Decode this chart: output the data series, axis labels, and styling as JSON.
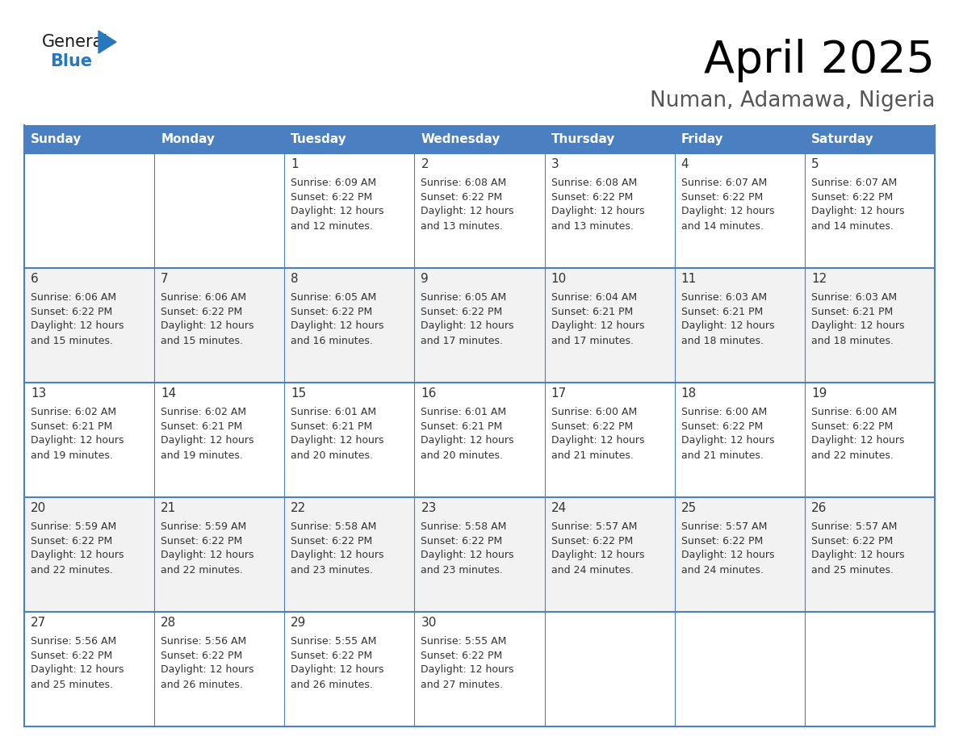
{
  "title": "April 2025",
  "subtitle": "Numan, Adamawa, Nigeria",
  "header_bg": "#4a7fc1",
  "header_text": "#FFFFFF",
  "row_bg_light": "#f2f2f2",
  "row_bg_white": "#ffffff",
  "border_color": "#4a7fc1",
  "text_color": "#333333",
  "day_number_color": "#333333",
  "days_of_week": [
    "Sunday",
    "Monday",
    "Tuesday",
    "Wednesday",
    "Thursday",
    "Friday",
    "Saturday"
  ],
  "weeks": [
    [
      {
        "day": "",
        "sunrise": "",
        "sunset": "",
        "daylight": ""
      },
      {
        "day": "",
        "sunrise": "",
        "sunset": "",
        "daylight": ""
      },
      {
        "day": "1",
        "sunrise": "6:09 AM",
        "sunset": "6:22 PM",
        "daylight": "12 hours\nand 12 minutes."
      },
      {
        "day": "2",
        "sunrise": "6:08 AM",
        "sunset": "6:22 PM",
        "daylight": "12 hours\nand 13 minutes."
      },
      {
        "day": "3",
        "sunrise": "6:08 AM",
        "sunset": "6:22 PM",
        "daylight": "12 hours\nand 13 minutes."
      },
      {
        "day": "4",
        "sunrise": "6:07 AM",
        "sunset": "6:22 PM",
        "daylight": "12 hours\nand 14 minutes."
      },
      {
        "day": "5",
        "sunrise": "6:07 AM",
        "sunset": "6:22 PM",
        "daylight": "12 hours\nand 14 minutes."
      }
    ],
    [
      {
        "day": "6",
        "sunrise": "6:06 AM",
        "sunset": "6:22 PM",
        "daylight": "12 hours\nand 15 minutes."
      },
      {
        "day": "7",
        "sunrise": "6:06 AM",
        "sunset": "6:22 PM",
        "daylight": "12 hours\nand 15 minutes."
      },
      {
        "day": "8",
        "sunrise": "6:05 AM",
        "sunset": "6:22 PM",
        "daylight": "12 hours\nand 16 minutes."
      },
      {
        "day": "9",
        "sunrise": "6:05 AM",
        "sunset": "6:22 PM",
        "daylight": "12 hours\nand 17 minutes."
      },
      {
        "day": "10",
        "sunrise": "6:04 AM",
        "sunset": "6:21 PM",
        "daylight": "12 hours\nand 17 minutes."
      },
      {
        "day": "11",
        "sunrise": "6:03 AM",
        "sunset": "6:21 PM",
        "daylight": "12 hours\nand 18 minutes."
      },
      {
        "day": "12",
        "sunrise": "6:03 AM",
        "sunset": "6:21 PM",
        "daylight": "12 hours\nand 18 minutes."
      }
    ],
    [
      {
        "day": "13",
        "sunrise": "6:02 AM",
        "sunset": "6:21 PM",
        "daylight": "12 hours\nand 19 minutes."
      },
      {
        "day": "14",
        "sunrise": "6:02 AM",
        "sunset": "6:21 PM",
        "daylight": "12 hours\nand 19 minutes."
      },
      {
        "day": "15",
        "sunrise": "6:01 AM",
        "sunset": "6:21 PM",
        "daylight": "12 hours\nand 20 minutes."
      },
      {
        "day": "16",
        "sunrise": "6:01 AM",
        "sunset": "6:21 PM",
        "daylight": "12 hours\nand 20 minutes."
      },
      {
        "day": "17",
        "sunrise": "6:00 AM",
        "sunset": "6:22 PM",
        "daylight": "12 hours\nand 21 minutes."
      },
      {
        "day": "18",
        "sunrise": "6:00 AM",
        "sunset": "6:22 PM",
        "daylight": "12 hours\nand 21 minutes."
      },
      {
        "day": "19",
        "sunrise": "6:00 AM",
        "sunset": "6:22 PM",
        "daylight": "12 hours\nand 22 minutes."
      }
    ],
    [
      {
        "day": "20",
        "sunrise": "5:59 AM",
        "sunset": "6:22 PM",
        "daylight": "12 hours\nand 22 minutes."
      },
      {
        "day": "21",
        "sunrise": "5:59 AM",
        "sunset": "6:22 PM",
        "daylight": "12 hours\nand 22 minutes."
      },
      {
        "day": "22",
        "sunrise": "5:58 AM",
        "sunset": "6:22 PM",
        "daylight": "12 hours\nand 23 minutes."
      },
      {
        "day": "23",
        "sunrise": "5:58 AM",
        "sunset": "6:22 PM",
        "daylight": "12 hours\nand 23 minutes."
      },
      {
        "day": "24",
        "sunrise": "5:57 AM",
        "sunset": "6:22 PM",
        "daylight": "12 hours\nand 24 minutes."
      },
      {
        "day": "25",
        "sunrise": "5:57 AM",
        "sunset": "6:22 PM",
        "daylight": "12 hours\nand 24 minutes."
      },
      {
        "day": "26",
        "sunrise": "5:57 AM",
        "sunset": "6:22 PM",
        "daylight": "12 hours\nand 25 minutes."
      }
    ],
    [
      {
        "day": "27",
        "sunrise": "5:56 AM",
        "sunset": "6:22 PM",
        "daylight": "12 hours\nand 25 minutes."
      },
      {
        "day": "28",
        "sunrise": "5:56 AM",
        "sunset": "6:22 PM",
        "daylight": "12 hours\nand 26 minutes."
      },
      {
        "day": "29",
        "sunrise": "5:55 AM",
        "sunset": "6:22 PM",
        "daylight": "12 hours\nand 26 minutes."
      },
      {
        "day": "30",
        "sunrise": "5:55 AM",
        "sunset": "6:22 PM",
        "daylight": "12 hours\nand 27 minutes."
      },
      {
        "day": "",
        "sunrise": "",
        "sunset": "",
        "daylight": ""
      },
      {
        "day": "",
        "sunrise": "",
        "sunset": "",
        "daylight": ""
      },
      {
        "day": "",
        "sunrise": "",
        "sunset": "",
        "daylight": ""
      }
    ]
  ],
  "logo_general_color": "#1a1a1a",
  "logo_blue_color": "#2878C0",
  "logo_triangle_color": "#2878C0"
}
